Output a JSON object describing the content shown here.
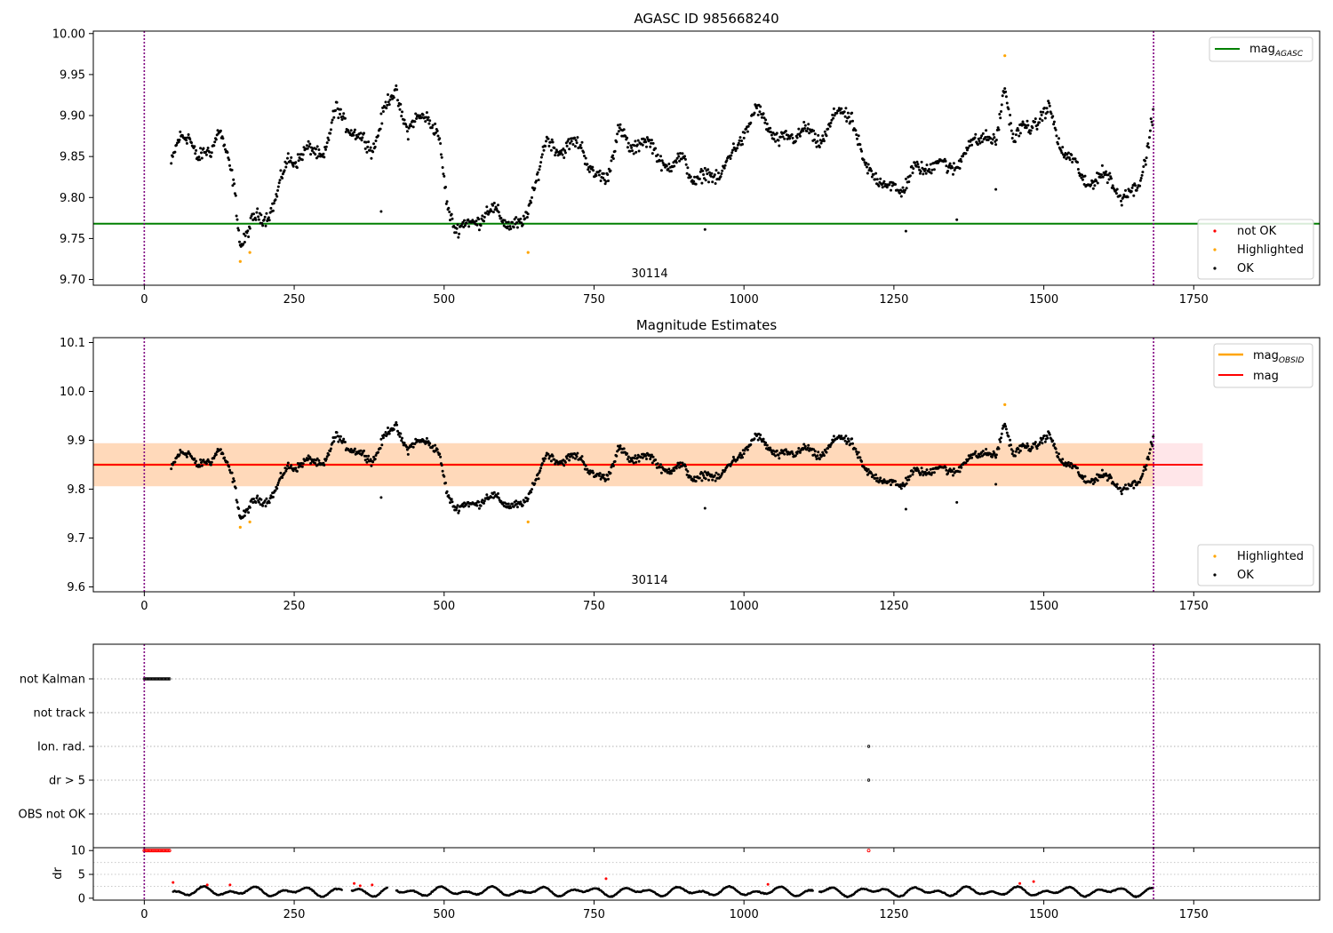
{
  "figure": {
    "obsid_label": "30114"
  },
  "chart_data": [
    {
      "type": "scatter",
      "title": "AGASC ID 985668240",
      "xlim": [
        -85,
        1960
      ],
      "ylim": [
        9.693,
        10.003
      ],
      "xticks": [
        0,
        250,
        500,
        750,
        1000,
        1250,
        1500,
        1750
      ],
      "yticks": [
        9.7,
        9.75,
        9.8,
        9.85,
        9.9,
        9.95,
        10.0
      ],
      "ytick_decimals": 2,
      "vlines": [
        0,
        1683
      ],
      "reference_line": {
        "name": "mag",
        "subscript": "AGASC",
        "value": 9.768,
        "color": "#008000"
      },
      "obsid_label": "30114",
      "legend_lines": [
        {
          "name": "mag",
          "subscript": "AGASC",
          "color": "#008000"
        }
      ],
      "legend_points": [
        {
          "name": "not OK",
          "color": "#ff0000"
        },
        {
          "name": "Highlighted",
          "color": "#ffa500"
        },
        {
          "name": "OK",
          "color": "#000000"
        }
      ],
      "highlighted_points": [
        [
          160,
          9.722
        ],
        [
          176,
          9.733
        ],
        [
          640,
          9.733
        ],
        [
          1435,
          9.973
        ]
      ],
      "ok_series_path": [
        [
          45,
          9.84
        ],
        [
          60,
          9.87
        ],
        [
          75,
          9.88
        ],
        [
          90,
          9.845
        ],
        [
          110,
          9.855
        ],
        [
          125,
          9.89
        ],
        [
          140,
          9.84
        ],
        [
          150,
          9.81
        ],
        [
          160,
          9.745
        ],
        [
          180,
          9.77
        ],
        [
          200,
          9.775
        ],
        [
          220,
          9.8
        ],
        [
          240,
          9.845
        ],
        [
          270,
          9.855
        ],
        [
          300,
          9.855
        ],
        [
          320,
          9.905
        ],
        [
          340,
          9.89
        ],
        [
          360,
          9.87
        ],
        [
          380,
          9.86
        ],
        [
          400,
          9.905
        ],
        [
          420,
          9.93
        ],
        [
          440,
          9.88
        ],
        [
          470,
          9.905
        ],
        [
          490,
          9.875
        ],
        [
          505,
          9.79
        ],
        [
          520,
          9.765
        ],
        [
          545,
          9.765
        ],
        [
          570,
          9.785
        ],
        [
          600,
          9.775
        ],
        [
          630,
          9.76
        ],
        [
          650,
          9.815
        ],
        [
          670,
          9.865
        ],
        [
          700,
          9.86
        ],
        [
          730,
          9.865
        ],
        [
          750,
          9.825
        ],
        [
          770,
          9.82
        ],
        [
          790,
          9.885
        ],
        [
          810,
          9.855
        ],
        [
          830,
          9.875
        ],
        [
          860,
          9.845
        ],
        [
          880,
          9.84
        ],
        [
          900,
          9.845
        ],
        [
          920,
          9.82
        ],
        [
          940,
          9.825
        ],
        [
          960,
          9.83
        ],
        [
          980,
          9.85
        ],
        [
          1000,
          9.88
        ],
        [
          1020,
          9.905
        ],
        [
          1040,
          9.89
        ],
        [
          1060,
          9.865
        ],
        [
          1080,
          9.875
        ],
        [
          1100,
          9.885
        ],
        [
          1120,
          9.865
        ],
        [
          1140,
          9.885
        ],
        [
          1160,
          9.905
        ],
        [
          1180,
          9.9
        ],
        [
          1200,
          9.835
        ],
        [
          1220,
          9.83
        ],
        [
          1240,
          9.81
        ],
        [
          1260,
          9.81
        ],
        [
          1280,
          9.83
        ],
        [
          1300,
          9.835
        ],
        [
          1320,
          9.845
        ],
        [
          1340,
          9.835
        ],
        [
          1360,
          9.845
        ],
        [
          1380,
          9.865
        ],
        [
          1400,
          9.88
        ],
        [
          1420,
          9.86
        ],
        [
          1435,
          9.94
        ],
        [
          1450,
          9.87
        ],
        [
          1470,
          9.885
        ],
        [
          1490,
          9.895
        ],
        [
          1510,
          9.905
        ],
        [
          1530,
          9.86
        ],
        [
          1550,
          9.84
        ],
        [
          1570,
          9.82
        ],
        [
          1590,
          9.82
        ],
        [
          1610,
          9.83
        ],
        [
          1630,
          9.795
        ],
        [
          1650,
          9.81
        ],
        [
          1670,
          9.845
        ],
        [
          1683,
          9.9
        ]
      ],
      "ok_outliers": [
        [
          395,
          9.783
        ],
        [
          935,
          9.761
        ],
        [
          1270,
          9.759
        ],
        [
          1355,
          9.773
        ],
        [
          1420,
          9.81
        ]
      ],
      "ok_scatter_amplitude": 0.012
    },
    {
      "type": "scatter",
      "title": "Magnitude Estimates",
      "xlim": [
        -85,
        1960
      ],
      "ylim": [
        9.59,
        10.11
      ],
      "xticks": [
        0,
        250,
        500,
        750,
        1000,
        1250,
        1500,
        1750
      ],
      "yticks": [
        9.6,
        9.7,
        9.8,
        9.9,
        10.0,
        10.1
      ],
      "ytick_decimals": 1,
      "vlines": [
        0,
        1683
      ],
      "mag_line": {
        "name": "mag",
        "value": 9.85,
        "color": "#ff0000"
      },
      "mag_band": {
        "low": 9.806,
        "high": 9.894,
        "x_start": -85,
        "x_end": 1765,
        "color": "#ffb6c1"
      },
      "obsid_band": {
        "low": 9.806,
        "high": 9.894,
        "x_start": -85,
        "x_end": 1683,
        "color": "#ffa500"
      },
      "obsid_label": "30114",
      "legend_lines": [
        {
          "name": "mag",
          "subscript": "OBSID",
          "color": "#ffa500"
        },
        {
          "name": "mag",
          "subscript": "",
          "color": "#ff0000"
        }
      ],
      "legend_points": [
        {
          "name": "Highlighted",
          "color": "#ffa500"
        },
        {
          "name": "OK",
          "color": "#000000"
        }
      ]
    },
    {
      "type": "scatter",
      "name": "flags",
      "xlim": [
        -85,
        1960
      ],
      "xticks": [
        0,
        250,
        500,
        750,
        1000,
        1250,
        1500,
        1750
      ],
      "vlines": [
        0,
        1683
      ],
      "categories": [
        "not Kalman",
        "not track",
        "Ion. rad.",
        "dr > 5",
        "OBS not OK"
      ],
      "flag_points": {
        "not Kalman": {
          "x_start": 0,
          "x_end": 42
        },
        "not track": null,
        "Ion. rad.": {
          "x_start": 1208,
          "x_end": 1208
        },
        "dr > 5": {
          "x_start": 1208,
          "x_end": 1208
        },
        "OBS not OK": null
      }
    },
    {
      "type": "scatter",
      "name": "dr",
      "ylabel": "dr",
      "xlim": [
        -85,
        1960
      ],
      "ylim": [
        -0.4,
        10.6
      ],
      "xticks": [
        0,
        250,
        500,
        750,
        1000,
        1250,
        1500,
        1750
      ],
      "yticks": [
        0,
        5,
        10
      ],
      "vlines": [
        0,
        1683
      ],
      "capped_red": [
        {
          "x_start": 0,
          "x_end": 42,
          "value": 10
        },
        {
          "x_start": 1208,
          "x_end": 1208,
          "value": 10
        }
      ],
      "red_points": [
        [
          48,
          3.3
        ],
        [
          105,
          2.8
        ],
        [
          143,
          2.8
        ],
        [
          350,
          3.1
        ],
        [
          360,
          2.6
        ],
        [
          380,
          2.8
        ],
        [
          770,
          4.1
        ],
        [
          1040,
          2.9
        ],
        [
          1460,
          3.1
        ],
        [
          1483,
          3.5
        ]
      ],
      "dr_range": [
        0.2,
        2.6
      ]
    }
  ]
}
